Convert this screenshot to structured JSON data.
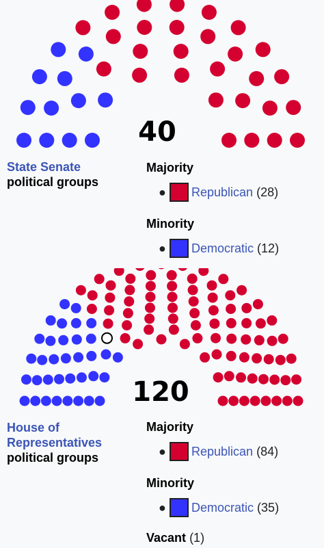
{
  "colors": {
    "republican": "#d40030",
    "democratic": "#3333ff",
    "vacant": "#ffffff"
  },
  "senate": {
    "total": "40",
    "title_link": "State Senate",
    "title_sub": "political groups",
    "majority_label": "Majority",
    "minority_label": "Minority",
    "majority_party": {
      "name": "Republican",
      "count": "(28)"
    },
    "minority_party": {
      "name": "Democratic",
      "count": "(12)"
    }
  },
  "house": {
    "total": "120",
    "title_link": "House of",
    "title_link2": "Representatives",
    "title_sub": "political groups",
    "majority_label": "Majority",
    "minority_label": "Minority",
    "majority_party": {
      "name": "Republican",
      "count": "(84)"
    },
    "minority_party": {
      "name": "Democratic",
      "count": "(35)"
    },
    "vacant_label": "Vacant",
    "vacant_count": "(1)"
  },
  "chart_data": [
    {
      "type": "pie",
      "title": "State Senate",
      "categories": [
        "Democratic",
        "Republican"
      ],
      "values": [
        12,
        28
      ],
      "total": 40
    },
    {
      "type": "pie",
      "title": "House of Representatives",
      "categories": [
        "Democratic",
        "Vacant",
        "Republican"
      ],
      "values": [
        35,
        1,
        84
      ],
      "total": 120
    }
  ]
}
